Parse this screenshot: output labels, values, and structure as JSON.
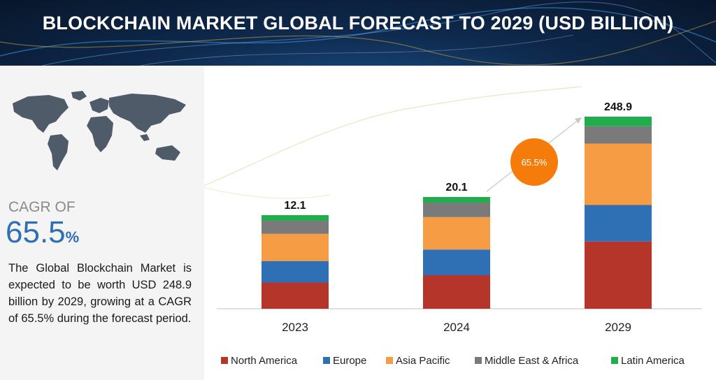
{
  "header": {
    "title": "BLOCKCHAIN MARKET GLOBAL FORECAST TO 2029 (USD BILLION)"
  },
  "side_panel": {
    "cagr_label": "CAGR OF",
    "cagr_number": "65.5",
    "cagr_percent": "%",
    "description": "The Global Blockchain Market is expected to be worth USD 248.9 billion by 2029, growing at a CAGR of 65.5% during the forecast period."
  },
  "chart_data": {
    "type": "bar",
    "stacked": true,
    "categories": [
      "2023",
      "2024",
      "2029"
    ],
    "totals": [
      "12.1",
      "20.1",
      "248.9"
    ],
    "series": [
      {
        "name": "North America",
        "color": "#b5352a",
        "shares": [
          0.28,
          0.3,
          0.35
        ]
      },
      {
        "name": "Europe",
        "color": "#2f6fb3",
        "shares": [
          0.23,
          0.23,
          0.19
        ]
      },
      {
        "name": "Asia Pacific",
        "color": "#f59c45",
        "shares": [
          0.29,
          0.29,
          0.32
        ]
      },
      {
        "name": "Middle East & Africa",
        "color": "#7a7a7a",
        "shares": [
          0.14,
          0.13,
          0.09
        ]
      },
      {
        "name": "Latin America",
        "color": "#1fae4b",
        "shares": [
          0.06,
          0.05,
          0.05
        ]
      }
    ],
    "cagr_callout": "65.5%",
    "callout_color": "#f57c0a"
  }
}
